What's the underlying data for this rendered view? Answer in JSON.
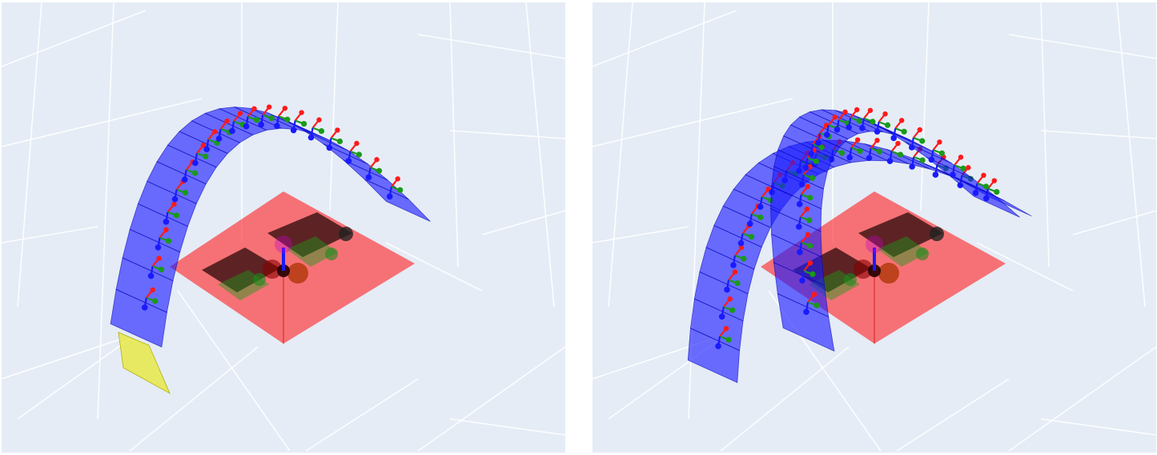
{
  "scene": {
    "background_color": "#e5ecf6",
    "grid_color": "#ffffff",
    "base_plate_color": "#ff2020",
    "dark_plate_color": "#2a0a0a",
    "module_face_color": "#1a1aff",
    "module_edge_color": "#0000b0",
    "base_module_color": "#e8e830",
    "axis_colors": {
      "x": "#ff1a1a",
      "y": "#1a9a1a",
      "z": "#1a1aff"
    }
  },
  "panels": [
    {
      "id": "left",
      "arms": 1,
      "has_base_module": true,
      "modules_per_arm": 20
    },
    {
      "id": "right",
      "arms": 2,
      "has_base_module": false,
      "modules_per_arm": 20
    }
  ]
}
